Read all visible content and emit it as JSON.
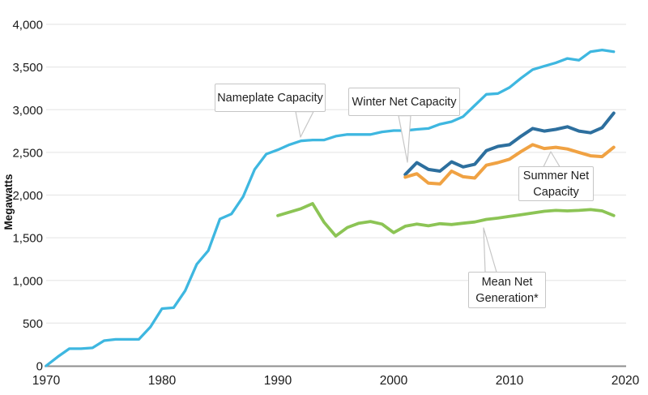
{
  "chart_data": {
    "type": "line",
    "title": "",
    "xlabel": "",
    "ylabel": "Megawatts",
    "xlim": [
      1970,
      2020
    ],
    "ylim": [
      0,
      4000
    ],
    "grid": "horizontal",
    "legend_position": "inline-callouts",
    "x_ticks": [
      {
        "value": 1970,
        "label": "1970"
      },
      {
        "value": 1980,
        "label": "1980"
      },
      {
        "value": 1990,
        "label": "1990"
      },
      {
        "value": 2000,
        "label": "2000"
      },
      {
        "value": 2010,
        "label": "2010"
      },
      {
        "value": 2020,
        "label": "2020"
      }
    ],
    "y_ticks": [
      {
        "value": 0,
        "label": "0"
      },
      {
        "value": 500,
        "label": "500"
      },
      {
        "value": 1000,
        "label": "1,000"
      },
      {
        "value": 1500,
        "label": "1,500"
      },
      {
        "value": 2000,
        "label": "2,000"
      },
      {
        "value": 2500,
        "label": "2,500"
      },
      {
        "value": 3000,
        "label": "3,000"
      },
      {
        "value": 3500,
        "label": "3,500"
      },
      {
        "value": 4000,
        "label": "4,000"
      }
    ],
    "series": [
      {
        "name": "Nameplate Capacity",
        "color": "#3eb7e0",
        "stroke_width": 3.3,
        "x_start": 1970,
        "x_interval": 1,
        "values": [
          0,
          105,
          200,
          200,
          210,
          295,
          310,
          310,
          310,
          455,
          670,
          680,
          880,
          1190,
          1350,
          1720,
          1780,
          1980,
          2300,
          2480,
          2530,
          2590,
          2635,
          2645,
          2645,
          2690,
          2710,
          2710,
          2710,
          2740,
          2755,
          2755,
          2770,
          2780,
          2830,
          2860,
          2920,
          3050,
          3180,
          3190,
          3260,
          3370,
          3470,
          3510,
          3550,
          3600,
          3580,
          3680,
          3700,
          3680
        ]
      },
      {
        "name": "Winter Net Capacity",
        "color": "#2d6f9e",
        "stroke_width": 4,
        "x_start": 2001,
        "x_interval": 1,
        "values": [
          2240,
          2380,
          2300,
          2280,
          2390,
          2330,
          2360,
          2520,
          2570,
          2590,
          2690,
          2780,
          2750,
          2770,
          2800,
          2750,
          2730,
          2790,
          2960
        ]
      },
      {
        "name": "Summer Net Capacity",
        "color": "#f0a243",
        "stroke_width": 4,
        "x_start": 2001,
        "x_interval": 1,
        "values": [
          2210,
          2250,
          2140,
          2130,
          2280,
          2215,
          2200,
          2350,
          2380,
          2420,
          2510,
          2590,
          2545,
          2560,
          2540,
          2500,
          2460,
          2450,
          2560
        ]
      },
      {
        "name": "Mean Net Generation*",
        "color": "#8cc455",
        "stroke_width": 3.8,
        "x_start": 1990,
        "x_interval": 1,
        "values": [
          1760,
          1800,
          1840,
          1900,
          1680,
          1520,
          1620,
          1670,
          1690,
          1660,
          1560,
          1635,
          1660,
          1640,
          1665,
          1655,
          1670,
          1685,
          1715,
          1730,
          1750,
          1770,
          1790,
          1810,
          1820,
          1815,
          1820,
          1830,
          1815,
          1760
        ]
      }
    ],
    "annotations": [
      {
        "label": "Nameplate Capacity",
        "lines": [
          "Nameplate Capacity"
        ]
      },
      {
        "label": "Winter Net Capacity",
        "lines": [
          "Winter Net Capacity"
        ]
      },
      {
        "label": "Summer Net Capacity",
        "lines": [
          "Summer Net",
          "Capacity"
        ]
      },
      {
        "label": "Mean Net Generation*",
        "lines": [
          "Mean Net",
          "Generation*"
        ]
      }
    ]
  },
  "colors": {
    "grid": "#e8e8e8",
    "axis": "#8e8e8e",
    "tick_text": "#1a1a1a",
    "callout_border": "#c6c6c6"
  }
}
